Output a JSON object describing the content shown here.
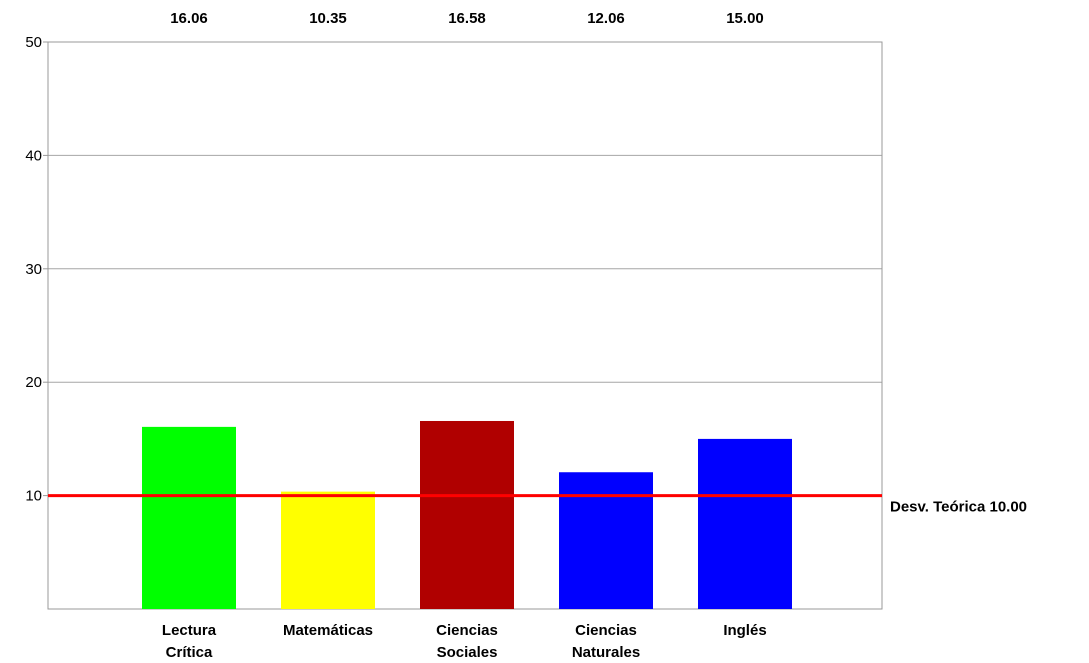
{
  "chart_data": {
    "type": "bar",
    "categories": [
      [
        "Lectura",
        "Crítica"
      ],
      [
        "Matemáticas"
      ],
      [
        "Ciencias",
        "Sociales"
      ],
      [
        "Ciencias",
        "Naturales"
      ],
      [
        "Inglés"
      ]
    ],
    "values": [
      16.06,
      10.35,
      16.58,
      12.06,
      15.0
    ],
    "value_labels": [
      "16.06",
      "10.35",
      "16.58",
      "12.06",
      "15.00"
    ],
    "colors": [
      "#00ff00",
      "#ffff00",
      "#b00000",
      "#0000ff",
      "#0000ff"
    ],
    "ylim": [
      0,
      50
    ],
    "yticks": [
      10,
      20,
      30,
      40,
      50
    ],
    "grid": true,
    "reference_line": {
      "value": 10.0,
      "label": "Desv. Teórica 10.00",
      "color": "#ff0000"
    }
  }
}
